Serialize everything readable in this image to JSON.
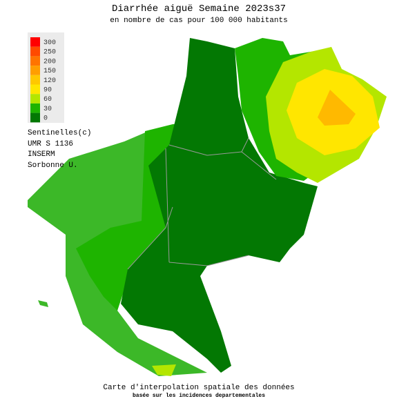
{
  "header": {
    "title": "Diarrhée aiguë Semaine 2023s37",
    "subtitle": "en nombre de cas pour 100 000 habitants"
  },
  "legend": {
    "items": [
      {
        "value": 300,
        "color": "#ff0000"
      },
      {
        "value": 250,
        "color": "#ff4a00"
      },
      {
        "value": 200,
        "color": "#ff7400"
      },
      {
        "value": 150,
        "color": "#ff9e00"
      },
      {
        "value": 120,
        "color": "#ffc800"
      },
      {
        "value": 90,
        "color": "#ffe600"
      },
      {
        "value": 60,
        "color": "#b4e600"
      },
      {
        "value": 30,
        "color": "#1eb400"
      },
      {
        "value": 0,
        "color": "#037803"
      }
    ]
  },
  "credits": [
    "Sentinelles(c)",
    "UMR S 1136",
    "INSERM",
    "Sorbonne U."
  ],
  "footer": {
    "title": "Carte d'interpolation spatiale des données",
    "subtitle": "basée sur les incidences departementales"
  }
}
